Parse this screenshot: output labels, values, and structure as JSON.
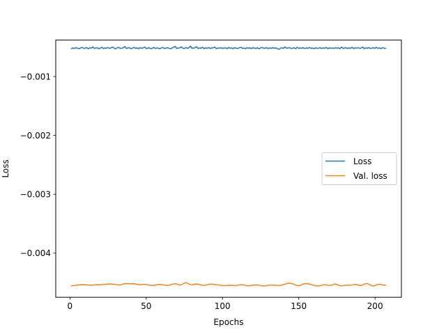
{
  "chart_data": {
    "type": "line",
    "xlabel": "Epochs",
    "ylabel": "Loss",
    "xlim": [
      -9.3,
      217.3
    ],
    "ylim": [
      -0.00475,
      -0.00038
    ],
    "xticks": [
      0,
      50,
      100,
      150,
      200
    ],
    "xtick_labels": [
      "0",
      "50",
      "100",
      "150",
      "200"
    ],
    "yticks": [
      -0.001,
      -0.002,
      -0.003,
      -0.004
    ],
    "ytick_labels": [
      "−0.001",
      "−0.002",
      "−0.003",
      "−0.004"
    ],
    "grid": false,
    "legend_position": "center-right",
    "x_start": 1,
    "x_end": 207,
    "series": [
      {
        "name": "Loss",
        "color": "#1f77b4",
        "values": [
          -0.000525,
          -0.000515,
          -0.000522,
          -0.000508,
          -0.000518,
          -0.000526,
          -0.000512,
          -0.000505,
          -0.000521,
          -0.000519,
          -0.000507,
          -0.000528,
          -0.000511,
          -0.000517,
          -0.000495,
          -0.000523,
          -0.000514,
          -0.000509,
          -0.000527,
          -0.000516,
          -0.000502,
          -0.000524,
          -0.000513,
          -0.000518,
          -0.000506,
          -0.000521,
          -0.000511,
          -0.000498,
          -0.000519,
          -0.000526,
          -0.000512,
          -0.000504,
          -0.000522,
          -0.000517,
          -0.000509,
          -0.000489,
          -0.000523,
          -0.000515,
          -0.000507,
          -0.000527,
          -0.000518,
          -0.000503,
          -0.000521,
          -0.000512,
          -0.000526,
          -0.000508,
          -0.000519,
          -0.000514,
          -0.000497,
          -0.000524,
          -0.000516,
          -0.00051,
          -0.000526,
          -0.000519,
          -0.000505,
          -0.000522,
          -0.000513,
          -0.000518,
          -0.000528,
          -0.000511,
          -0.000506,
          -0.000523,
          -0.000515,
          -0.000509,
          -0.00052,
          -0.000527,
          -0.000514,
          -0.000501,
          -0.000488,
          -0.000522,
          -0.000516,
          -0.000511,
          -0.000495,
          -0.000519,
          -0.000524,
          -0.000507,
          -0.000518,
          -0.000512,
          -0.000482,
          -0.000521,
          -0.000516,
          -0.000509,
          -0.000493,
          -0.000524,
          -0.000513,
          -0.000518,
          -0.000502,
          -0.000527,
          -0.000511,
          -0.00052,
          -0.000506,
          -0.000523,
          -0.000515,
          -0.00051,
          -0.000498,
          -0.000526,
          -0.000514,
          -0.000519,
          -0.000508,
          -0.000522,
          -0.000516,
          -0.000511,
          -0.000525,
          -0.000504,
          -0.000519,
          -0.000513,
          -0.000527,
          -0.000509,
          -0.000518,
          -0.000523,
          -0.000511,
          -0.000502,
          -0.000521,
          -0.000515,
          -0.000526,
          -0.000508,
          -0.000519,
          -0.000512,
          -0.000524,
          -0.000506,
          -0.000518,
          -0.000522,
          -0.000511,
          -0.000527,
          -0.000514,
          -0.000505,
          -0.00052,
          -0.000516,
          -0.000509,
          -0.000525,
          -0.000513,
          -0.000521,
          -0.000507,
          -0.000518,
          -0.000512,
          -0.000526,
          -0.000538,
          -0.000517,
          -0.00051,
          -0.000522,
          -0.000495,
          -0.000519,
          -0.000513,
          -0.000508,
          -0.000524,
          -0.000516,
          -0.000511,
          -0.000527,
          -0.000503,
          -0.00052,
          -0.000514,
          -0.000518,
          -0.000509,
          -0.000525,
          -0.000512,
          -0.000521,
          -0.000506,
          -0.000519,
          -0.000515,
          -0.000526,
          -0.00051,
          -0.000522,
          -0.000517,
          -0.000508,
          -0.000524,
          -0.000513,
          -0.000519,
          -0.000505,
          -0.000527,
          -0.000511,
          -0.00052,
          -0.000514,
          -0.000523,
          -0.000509,
          -0.000518,
          -0.000512,
          -0.000526,
          -0.000497,
          -0.000521,
          -0.000515,
          -0.000508,
          -0.000524,
          -0.000513,
          -0.000519,
          -0.000502,
          -0.000525,
          -0.000511,
          -0.000517,
          -0.000509,
          -0.000522,
          -0.000514,
          -0.000499,
          -0.000526,
          -0.000512,
          -0.00052,
          -0.000507,
          -0.000523,
          -0.000515,
          -0.00051,
          -0.000519,
          -0.000504,
          -0.000521,
          -0.000513,
          -0.000525,
          -0.000508,
          -0.000517,
          -0.000522
        ]
      },
      {
        "name": "Val. loss",
        "color": "#ff7f0e",
        "values": [
          -0.004555,
          -0.004553,
          -0.00455,
          -0.004547,
          -0.004543,
          -0.00454,
          -0.004537,
          -0.004535,
          -0.004536,
          -0.004538,
          -0.004541,
          -0.004544,
          -0.004546,
          -0.004546,
          -0.004543,
          -0.004539,
          -0.004536,
          -0.004535,
          -0.004536,
          -0.004537,
          -0.004536,
          -0.004533,
          -0.00453,
          -0.004527,
          -0.004525,
          -0.004525,
          -0.004526,
          -0.004528,
          -0.004531,
          -0.004535,
          -0.00454,
          -0.004543,
          -0.004539,
          -0.00453,
          -0.004522,
          -0.004518,
          -0.004517,
          -0.004518,
          -0.00452,
          -0.004521,
          -0.00452,
          -0.004521,
          -0.004525,
          -0.004532,
          -0.004538,
          -0.004539,
          -0.004535,
          -0.004532,
          -0.004532,
          -0.004535,
          -0.00454,
          -0.004545,
          -0.004549,
          -0.004549,
          -0.004545,
          -0.004539,
          -0.004534,
          -0.004532,
          -0.004533,
          -0.004536,
          -0.004541,
          -0.004546,
          -0.004549,
          -0.004547,
          -0.004541,
          -0.004532,
          -0.004525,
          -0.004522,
          -0.004523,
          -0.00453,
          -0.004539,
          -0.00454,
          -0.004529,
          -0.004513,
          -0.004503,
          -0.004507,
          -0.00452,
          -0.004534,
          -0.00454,
          -0.004536,
          -0.004528,
          -0.004524,
          -0.004526,
          -0.004533,
          -0.004541,
          -0.004547,
          -0.004548,
          -0.004544,
          -0.004537,
          -0.004531,
          -0.004528,
          -0.004528,
          -0.00453,
          -0.004533,
          -0.004536,
          -0.004539,
          -0.004543,
          -0.004547,
          -0.004551,
          -0.004553,
          -0.004552,
          -0.004549,
          -0.004546,
          -0.004545,
          -0.004547,
          -0.00455,
          -0.004552,
          -0.00455,
          -0.004546,
          -0.00454,
          -0.004537,
          -0.004538,
          -0.004543,
          -0.004549,
          -0.004554,
          -0.004556,
          -0.004553,
          -0.004548,
          -0.004544,
          -0.004542,
          -0.004541,
          -0.004543,
          -0.004547,
          -0.004552,
          -0.004556,
          -0.004558,
          -0.004556,
          -0.004551,
          -0.004547,
          -0.004544,
          -0.004543,
          -0.004544,
          -0.004546,
          -0.004548,
          -0.004549,
          -0.004548,
          -0.004545,
          -0.00454,
          -0.004533,
          -0.004524,
          -0.004517,
          -0.004513,
          -0.004513,
          -0.004517,
          -0.004525,
          -0.004536,
          -0.004546,
          -0.004552,
          -0.004551,
          -0.004543,
          -0.004531,
          -0.004521,
          -0.004517,
          -0.004518,
          -0.004523,
          -0.00453,
          -0.004538,
          -0.004545,
          -0.004552,
          -0.004557,
          -0.004558,
          -0.004555,
          -0.004549,
          -0.004542,
          -0.004538,
          -0.004538,
          -0.004542,
          -0.004548,
          -0.00455,
          -0.004544,
          -0.004532,
          -0.004525,
          -0.004529,
          -0.00454,
          -0.00455,
          -0.004555,
          -0.004554,
          -0.00455,
          -0.004546,
          -0.004544,
          -0.004545,
          -0.004546,
          -0.004543,
          -0.004537,
          -0.004532,
          -0.004533,
          -0.004541,
          -0.004549,
          -0.00455,
          -0.004541,
          -0.004528,
          -0.004519,
          -0.004518,
          -0.004527,
          -0.004541,
          -0.004554,
          -0.004558,
          -0.004552,
          -0.00454,
          -0.004531,
          -0.004529,
          -0.004533,
          -0.00454,
          -0.004545,
          -0.004544
        ]
      }
    ]
  }
}
